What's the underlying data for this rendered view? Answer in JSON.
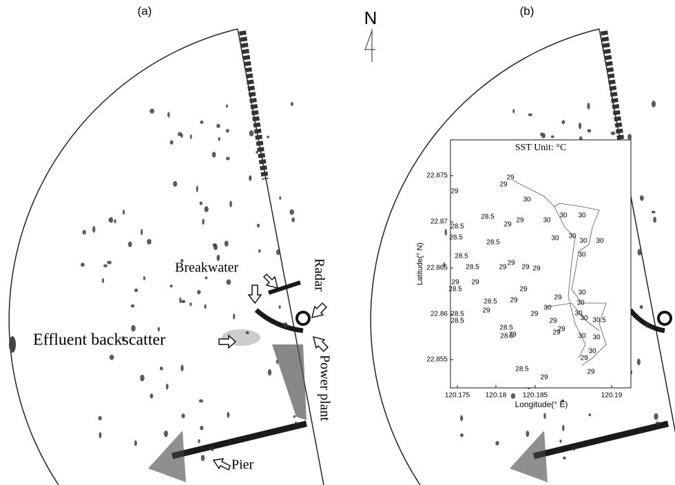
{
  "panel_a": {
    "label": "(a)",
    "annotations": [
      "Breakwater",
      "Radar",
      "Effluent backscatter",
      "Power plant",
      "Pier"
    ]
  },
  "panel_b": {
    "label": "(b)"
  },
  "north": "N",
  "inset": {
    "title": "SST Unit: °C",
    "y_label": "Latitude(° N)",
    "x_label": "Longitude(° E)",
    "yticks": [
      "22.875",
      "22.87",
      "22.865",
      "22.86",
      "22.855"
    ],
    "xticks": [
      "120.175",
      "120.18",
      "120.185",
      "120.19"
    ],
    "contour_labels": [
      "29",
      "29",
      "29",
      "30",
      "28.5",
      "28.5",
      "29",
      "29",
      "30",
      "30",
      "30",
      "28.5",
      "28.5",
      "30",
      "30",
      "30",
      "30",
      "30",
      "28.5",
      "28.5",
      "29",
      "29",
      "29",
      "29",
      "29",
      "28.5",
      "29",
      "29",
      "29",
      "30",
      "30",
      "28.5",
      "29",
      "29",
      "30",
      "28.5",
      "28.5",
      "29",
      "29",
      "30",
      "30",
      "30.5",
      "29",
      "28.5",
      "29",
      "29",
      "30",
      "30",
      "29",
      "30",
      "28.5",
      "29",
      "29",
      "28.5"
    ]
  }
}
